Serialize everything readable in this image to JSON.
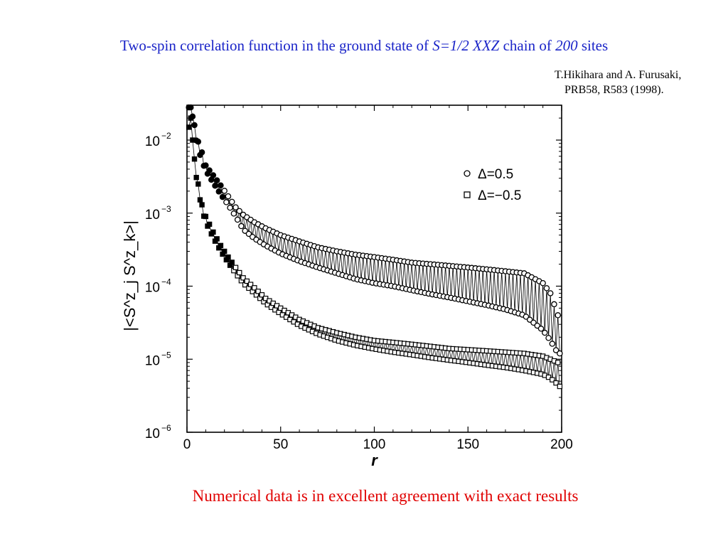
{
  "slide": {
    "title_parts": [
      {
        "text": "Two-spin correlation function in the ground state of ",
        "italic": false
      },
      {
        "text": "S=1/2 XXZ",
        "italic": true
      },
      {
        "text": " chain of ",
        "italic": false
      },
      {
        "text": "200",
        "italic": true
      },
      {
        "text": " sites",
        "italic": false
      }
    ],
    "citation_line1": "T.Hikihara and A. Furusaki,",
    "citation_line2": "PRB58, R583 (1998).",
    "footer": "Numerical data is in excellent agreement with exact results"
  },
  "colors": {
    "title": "#1a24c8",
    "footer": "#e00000",
    "plot": "#000000"
  },
  "chart_data": {
    "type": "scatter",
    "title": "",
    "xlabel": "r",
    "ylabel": "|<S^z_j S^z_k>|",
    "xlim": [
      0,
      200
    ],
    "ylim": [
      1e-06,
      0.03
    ],
    "yscale": "log",
    "x_ticks": [
      0,
      50,
      100,
      150,
      200
    ],
    "x_tick_labels": [
      "0",
      "50",
      "100",
      "150",
      "200"
    ],
    "y_ticks": [
      1e-06,
      1e-05,
      0.0001,
      0.001,
      0.01
    ],
    "y_tick_labels": [
      {
        "base": "10",
        "exp": "−6"
      },
      {
        "base": "10",
        "exp": "−5"
      },
      {
        "base": "10",
        "exp": "−4"
      },
      {
        "base": "10",
        "exp": "−3"
      },
      {
        "base": "10",
        "exp": "−2"
      }
    ],
    "legend_position": "top-right",
    "series": [
      {
        "name": "Δ=0.5",
        "marker": "circle",
        "x": [
          2,
          3,
          4,
          6,
          8,
          10,
          14,
          18,
          22,
          26,
          30,
          36,
          42,
          50,
          60,
          70,
          80,
          90,
          100,
          110,
          120,
          130,
          140,
          150,
          160,
          170,
          180,
          190,
          194,
          198,
          200
        ],
        "upper": [
          0.028,
          0.024,
          0.016,
          0.0095,
          0.0068,
          0.0045,
          0.0033,
          0.0024,
          0.0017,
          0.0012,
          0.00095,
          0.00075,
          0.00062,
          0.0005,
          0.00041,
          0.00034,
          0.0003,
          0.00027,
          0.00025,
          0.00023,
          0.00021,
          0.0002,
          0.00019,
          0.00018,
          0.00017,
          0.00016,
          0.00015,
          0.00011,
          8e-05,
          4e-05,
          3.5e-05
        ],
        "lower": [
          0.028,
          0.021,
          0.013,
          0.0075,
          0.0052,
          0.0038,
          0.0026,
          0.0018,
          0.0013,
          0.0009,
          0.0006,
          0.00045,
          0.00036,
          0.00028,
          0.00022,
          0.00018,
          0.00015,
          0.000125,
          0.00011,
          0.0001,
          8.8e-05,
          7.8e-05,
          7e-05,
          6.2e-05,
          5.5e-05,
          4.8e-05,
          4e-05,
          2.5e-05,
          1.8e-05,
          1.2e-05,
          1.2e-05
        ]
      },
      {
        "name": "Δ=−0.5",
        "marker": "square",
        "x": [
          2,
          3,
          4,
          6,
          8,
          10,
          14,
          18,
          22,
          26,
          30,
          36,
          42,
          50,
          60,
          70,
          80,
          90,
          100,
          110,
          120,
          130,
          140,
          150,
          160,
          170,
          180,
          190,
          194,
          198,
          200
        ],
        "upper": [
          0.02,
          0.012,
          0.0055,
          0.0025,
          0.0013,
          0.0009,
          0.00055,
          0.00036,
          0.00025,
          0.00018,
          0.00013,
          9.5e-05,
          6.8e-05,
          5e-05,
          3.5e-05,
          2.7e-05,
          2.3e-05,
          2e-05,
          1.8e-05,
          1.7e-05,
          1.6e-05,
          1.5e-05,
          1.4e-05,
          1.35e-05,
          1.3e-05,
          1.25e-05,
          1.2e-05,
          1.1e-05,
          1e-05,
          9e-06,
          8.5e-06
        ],
        "lower": [
          0.015,
          0.01,
          0.0045,
          0.0021,
          0.0011,
          0.00075,
          0.00046,
          0.0003,
          0.00021,
          0.00015,
          0.00011,
          8e-05,
          5.8e-05,
          4.2e-05,
          2.9e-05,
          2.2e-05,
          1.8e-05,
          1.55e-05,
          1.38e-05,
          1.25e-05,
          1.15e-05,
          1.05e-05,
          9.7e-06,
          9e-06,
          8.3e-06,
          7.7e-06,
          7e-06,
          6.2e-06,
          5.5e-06,
          4.5e-06,
          4e-06
        ]
      }
    ]
  }
}
